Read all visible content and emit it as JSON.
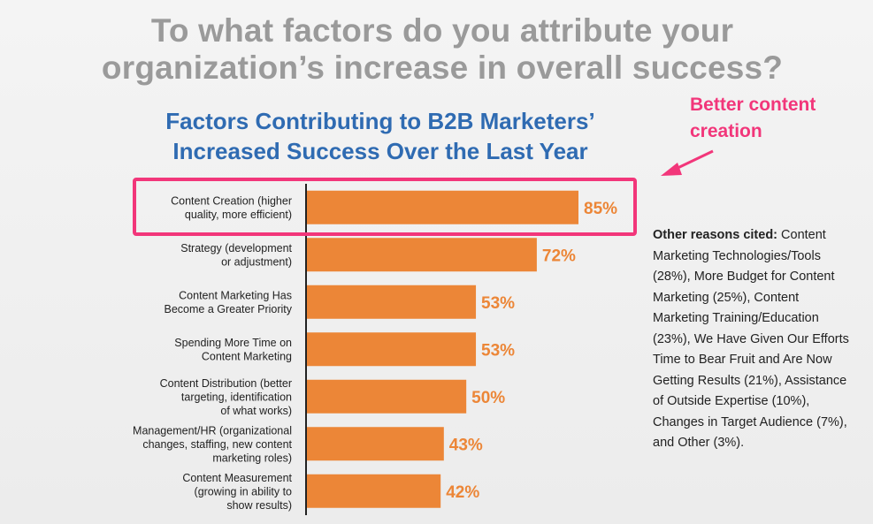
{
  "slide_title": "To what factors do you attribute your organization’s increase in overall success?",
  "callout": {
    "text": "Better content creation",
    "color": "#f2367a"
  },
  "notes": {
    "lead": "Other reasons cited:",
    "body": " Content Marketing Technologies/Tools (28%), More Budget for Content Marketing (25%), Content Marketing Training/Education (23%), We Have Given Our Efforts Time to Bear Fruit and Are Now Getting Results (21%), Assistance of Outside Expertise (10%), Changes in Target Audience (7%), and Other (3%)."
  },
  "colors": {
    "bar": "#ec8637",
    "value_label": "#ec8637",
    "chart_title": "#2f6bb2",
    "slide_title": "#9a9a9a",
    "highlight": "#f2367a"
  },
  "chart_data": {
    "type": "bar",
    "orientation": "horizontal",
    "title": "Factors Contributing to B2B Marketers’ Increased Success Over the Last Year",
    "categories": [
      [
        "Content Creation (higher",
        "quality, more efficient)"
      ],
      [
        "Strategy (development",
        "or adjustment)"
      ],
      [
        "Content Marketing Has",
        "Become a Greater Priority"
      ],
      [
        "Spending More Time on",
        "Content Marketing"
      ],
      [
        "Content Distribution (better",
        "targeting, identification",
        "of what works)"
      ],
      [
        "Management/HR (organizational",
        "changes, staffing, new content",
        "marketing roles)"
      ],
      [
        "Content Measurement",
        "(growing in ability to",
        "show results)"
      ]
    ],
    "values": [
      85,
      72,
      53,
      53,
      50,
      43,
      42
    ],
    "value_labels": [
      "85%",
      "72%",
      "53%",
      "53%",
      "50%",
      "43%",
      "42%"
    ],
    "highlighted_category": "Content Creation (higher quality, more efficient)",
    "xlim": [
      0,
      100
    ],
    "grid": false,
    "legend": "none"
  }
}
